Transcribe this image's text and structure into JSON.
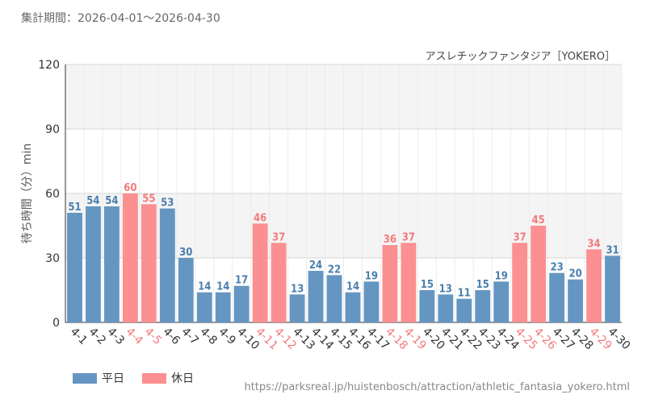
{
  "period_text": "集計期間：2026-04-01～2026-04-30",
  "source_url": "https://parksreal.jp/huistenbosch/attraction/athletic_fantasia_yokero.html",
  "colors": {
    "weekday": "#6596c2",
    "holiday": "#fc8f91",
    "weekday_label": "#4a7fae",
    "holiday_label": "#f4797b"
  },
  "chart_data": {
    "type": "bar",
    "title": "アスレチックファンタジア［YOKERO］",
    "ylabel": "待ち時間（分）min",
    "ylim": [
      0,
      120
    ],
    "yticks": [
      0,
      30,
      60,
      90,
      120
    ],
    "categories": [
      "4-1",
      "4-2",
      "4-3",
      "4-4",
      "4-5",
      "4-6",
      "4-7",
      "4-8",
      "4-9",
      "4-10",
      "4-11",
      "4-12",
      "4-13",
      "4-14",
      "4-15",
      "4-16",
      "4-17",
      "4-18",
      "4-19",
      "4-20",
      "4-21",
      "4-22",
      "4-23",
      "4-24",
      "4-25",
      "4-26",
      "4-27",
      "4-28",
      "4-29",
      "4-30"
    ],
    "values": [
      51,
      54,
      54,
      60,
      55,
      53,
      30,
      14,
      14,
      17,
      46,
      37,
      13,
      24,
      22,
      14,
      19,
      36,
      37,
      15,
      13,
      11,
      15,
      19,
      37,
      45,
      23,
      20,
      34,
      31
    ],
    "day_type": [
      "平日",
      "平日",
      "平日",
      "休日",
      "休日",
      "平日",
      "平日",
      "平日",
      "平日",
      "平日",
      "休日",
      "休日",
      "平日",
      "平日",
      "平日",
      "平日",
      "平日",
      "休日",
      "休日",
      "平日",
      "平日",
      "平日",
      "平日",
      "平日",
      "休日",
      "休日",
      "平日",
      "平日",
      "休日",
      "平日"
    ],
    "legend": [
      {
        "name": "平日",
        "color": "#6596c2"
      },
      {
        "name": "休日",
        "color": "#fc8f91"
      }
    ],
    "legend_position": "bottom-left",
    "grid": true
  }
}
